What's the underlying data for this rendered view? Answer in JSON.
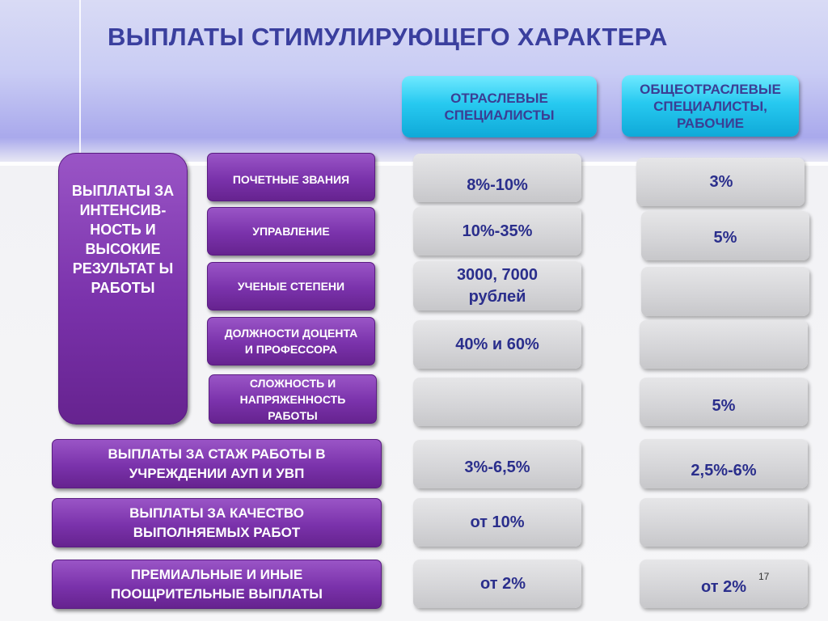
{
  "title": "ВЫПЛАТЫ СТИМУЛИРУЮЩЕГО ХАРАКТЕРА",
  "columns": {
    "industry": "ОТРАСЛЕВЫЕ СПЕЦИАЛИСТЫ",
    "general": "ОБЩЕОТРАСЛЕВЫЕ СПЕЦИАЛИСТЫ, РАБОЧИЕ"
  },
  "intensity_group": "ВЫПЛАТЫ ЗА ИНТЕНСИВ-НОСТЬ И ВЫСОКИЕ РЕЗУЛЬТАТ Ы РАБОТЫ",
  "rows": [
    {
      "label": "ПОЧЕТНЫЕ ЗВАНИЯ",
      "industry": "8%-10%",
      "general": "3%"
    },
    {
      "label": "УПРАВЛЕНИЕ",
      "industry": "10%-35%",
      "general": "5%"
    },
    {
      "label": "УЧЕНЫЕ СТЕПЕНИ",
      "industry": "3000, 7000 рублей",
      "general": ""
    },
    {
      "label": "ДОЛЖНОСТИ ДОЦЕНТА И ПРОФЕССОРА",
      "industry": "40% и 60%",
      "general": ""
    },
    {
      "label": "СЛОЖНОСТЬ И НАПРЯЖЕННОСТЬ РАБОТЫ",
      "industry": "",
      "general": "5%"
    },
    {
      "label": "ВЫПЛАТЫ ЗА СТАЖ РАБОТЫ В УЧРЕЖДЕНИИ АУП И УВП",
      "industry": "3%-6,5%",
      "general": "2,5%-6%"
    },
    {
      "label": "ВЫПЛАТЫ ЗА КАЧЕСТВО ВЫПОЛНЯЕМЫХ РАБОТ",
      "industry": "от 10%",
      "general": ""
    },
    {
      "label": "ПРЕМИАЛЬНЫЕ И ИНЫЕ ПООЩРИТЕЛЬНЫЕ ВЫПЛАТЫ",
      "industry": "от 2%",
      "general": "от 2%"
    }
  ],
  "page_number": "17",
  "colors": {
    "title": "#3a3f9e",
    "header_box": "#27c9f0",
    "purple_box": "#7a32ab",
    "gray_box": "#d4d4d7",
    "value_text": "#2a2e8c"
  }
}
